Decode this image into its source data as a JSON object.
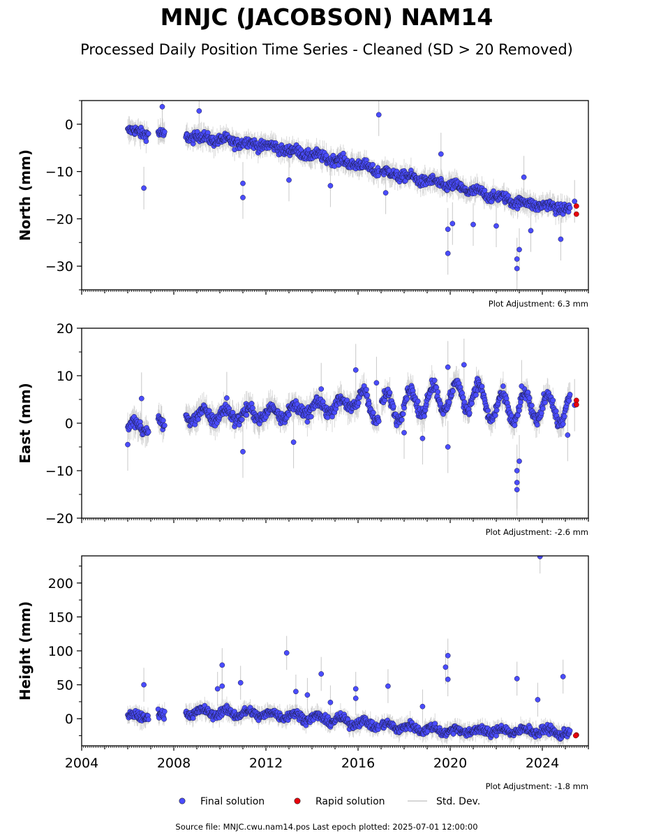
{
  "title": "MNJC (JACOBSON) NAM14",
  "subtitle": "Processed Daily Position Time Series - Cleaned (SD > 20 Removed)",
  "legend": {
    "final": "Final solution",
    "rapid": "Rapid solution",
    "std": "Std. Dev."
  },
  "footer": "Source file: MNJC.cwu.nam14.pos  Last epoch plotted: 2025-07-01 12:00:00",
  "colors": {
    "final": "#4a4cff",
    "rapid": "#e8000b",
    "std": "#c8c8c8"
  },
  "chart_data": [
    {
      "type": "scatter",
      "ylabel": "North (mm)",
      "ylim": [
        -35,
        5
      ],
      "yticks": [
        0,
        -10,
        -20,
        -30
      ],
      "yticklabels": [
        "0",
        "−10",
        "−20",
        "−30"
      ],
      "xlim": [
        2004,
        2026
      ],
      "adjustment": "Plot Adjustment: 6.3 mm",
      "trend": [
        [
          2006.0,
          -1.5
        ],
        [
          2008.6,
          -2.5
        ],
        [
          2012.0,
          -4.5
        ],
        [
          2016.0,
          -8.5
        ],
        [
          2017.0,
          -10.0
        ],
        [
          2020.0,
          -13.0
        ],
        [
          2023.0,
          -16.5
        ],
        [
          2025.2,
          -18.0
        ]
      ],
      "gaps": [
        [
          2006.9,
          2007.3
        ],
        [
          2007.6,
          2008.5
        ],
        [
          2016.9,
          2017.0
        ]
      ],
      "outliers": [
        [
          2006.7,
          -13.5
        ],
        [
          2007.5,
          3.7
        ],
        [
          2009.1,
          2.8
        ],
        [
          2011.0,
          -15.5
        ],
        [
          2011.0,
          -12.5
        ],
        [
          2013.0,
          -11.8
        ],
        [
          2014.8,
          -13.0
        ],
        [
          2016.9,
          2.0
        ],
        [
          2017.2,
          -14.5
        ],
        [
          2019.6,
          -6.3
        ],
        [
          2019.9,
          -27.3
        ],
        [
          2019.9,
          -22.2
        ],
        [
          2020.1,
          -21.0
        ],
        [
          2021.0,
          -21.2
        ],
        [
          2022.0,
          -21.5
        ],
        [
          2022.9,
          -30.5
        ],
        [
          2022.9,
          -28.5
        ],
        [
          2023.0,
          -26.5
        ],
        [
          2023.2,
          -11.2
        ],
        [
          2023.5,
          -22.5
        ],
        [
          2024.8,
          -24.3
        ],
        [
          2025.4,
          -16.3
        ]
      ],
      "rapid": [
        [
          2025.48,
          -17.3
        ],
        [
          2025.48,
          -19.0
        ]
      ]
    },
    {
      "type": "scatter",
      "ylabel": "East (mm)",
      "ylim": [
        -20,
        20
      ],
      "yticks": [
        20,
        10,
        0,
        -10,
        -20
      ],
      "yticklabels": [
        "20",
        "10",
        "0",
        "−10",
        "−20"
      ],
      "xlim": [
        2004,
        2026
      ],
      "adjustment": "Plot Adjustment: -2.6 mm",
      "trend": [
        [
          2006.0,
          -1.0
        ],
        [
          2007.0,
          -0.5
        ],
        [
          2008.6,
          1.5
        ],
        [
          2012.0,
          2.0
        ],
        [
          2014.0,
          3.0
        ],
        [
          2016.0,
          4.5
        ],
        [
          2017.0,
          3.0
        ],
        [
          2019.0,
          5.0
        ],
        [
          2021.0,
          6.0
        ],
        [
          2022.0,
          3.0
        ],
        [
          2024.0,
          3.5
        ],
        [
          2025.2,
          2.5
        ]
      ],
      "gaps": [
        [
          2006.9,
          2007.3
        ],
        [
          2007.6,
          2008.5
        ],
        [
          2016.9,
          2017.0
        ]
      ],
      "outliers": [
        [
          2006.0,
          -4.5
        ],
        [
          2006.6,
          5.2
        ],
        [
          2010.3,
          5.3
        ],
        [
          2011.0,
          -6.0
        ],
        [
          2013.2,
          -4.0
        ],
        [
          2014.4,
          7.2
        ],
        [
          2015.9,
          11.2
        ],
        [
          2016.8,
          8.5
        ],
        [
          2018.0,
          -2.0
        ],
        [
          2018.8,
          -3.2
        ],
        [
          2019.9,
          11.8
        ],
        [
          2019.9,
          -5.0
        ],
        [
          2020.6,
          12.3
        ],
        [
          2022.9,
          -14.0
        ],
        [
          2022.9,
          -12.5
        ],
        [
          2022.9,
          -10.0
        ],
        [
          2023.0,
          -8.0
        ],
        [
          2023.1,
          7.8
        ],
        [
          2025.1,
          -2.5
        ],
        [
          2025.4,
          3.8
        ]
      ],
      "rapid": [
        [
          2025.48,
          4.8
        ],
        [
          2025.48,
          3.9
        ]
      ]
    },
    {
      "type": "scatter",
      "ylabel": "Height (mm)",
      "ylim": [
        -40,
        240
      ],
      "yticks": [
        200,
        150,
        100,
        50,
        0
      ],
      "yticklabels": [
        "200",
        "150",
        "100",
        "50",
        "0"
      ],
      "xlim": [
        2004,
        2026
      ],
      "xticks": [
        2004,
        2008,
        2012,
        2016,
        2020,
        2024
      ],
      "xticklabels": [
        "2004",
        "2008",
        "2012",
        "2016",
        "2020",
        "2024"
      ],
      "adjustment": "Plot Adjustment: -1.8 mm",
      "trend": [
        [
          2006.0,
          2.0
        ],
        [
          2008.6,
          10.0
        ],
        [
          2011.0,
          8.0
        ],
        [
          2013.0,
          5.0
        ],
        [
          2015.0,
          -2.0
        ],
        [
          2017.0,
          -10.0
        ],
        [
          2020.0,
          -18.0
        ],
        [
          2022.0,
          -18.0
        ],
        [
          2024.0,
          -18.0
        ],
        [
          2025.2,
          -22.0
        ]
      ],
      "gaps": [
        [
          2006.9,
          2007.3
        ],
        [
          2007.6,
          2008.5
        ],
        [
          2016.9,
          2017.0
        ]
      ],
      "outliers": [
        [
          2006.7,
          50.0
        ],
        [
          2009.9,
          44.0
        ],
        [
          2010.1,
          48.0
        ],
        [
          2010.1,
          79.0
        ],
        [
          2010.9,
          53.0
        ],
        [
          2012.9,
          97.0
        ],
        [
          2013.3,
          40.0
        ],
        [
          2013.8,
          35.0
        ],
        [
          2014.4,
          66.0
        ],
        [
          2014.8,
          24.0
        ],
        [
          2015.9,
          44.0
        ],
        [
          2015.9,
          30.0
        ],
        [
          2017.3,
          48.0
        ],
        [
          2018.8,
          18.0
        ],
        [
          2019.9,
          93.0
        ],
        [
          2019.8,
          76.0
        ],
        [
          2019.9,
          58.0
        ],
        [
          2022.9,
          59.0
        ],
        [
          2023.8,
          28.0
        ],
        [
          2023.9,
          239.0
        ],
        [
          2024.9,
          62.0
        ]
      ],
      "rapid": [
        [
          2025.48,
          -24.0
        ],
        [
          2025.45,
          -25.0
        ]
      ]
    }
  ]
}
